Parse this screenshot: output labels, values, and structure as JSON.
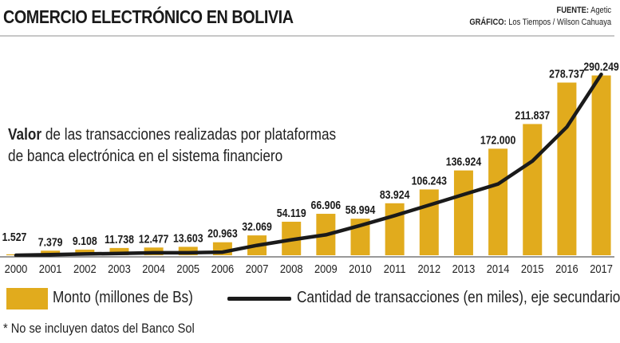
{
  "title": "COMERCIO ELECTRÓNICO EN BOLIVIA",
  "source": {
    "label1": "FUENTE:",
    "value1": "Agetic",
    "label2": "GRÁFICO:",
    "value2": "Los Tiempos / Wilson Cahuaya"
  },
  "description": {
    "bold": "Valor",
    "line1": " de las transacciones realizadas por plataformas",
    "line2": "de banca electrónica en el sistema financiero"
  },
  "legend": {
    "bars": "Monto (millones de Bs)",
    "line": "Cantidad de transacciones (en miles), eje secundario"
  },
  "footnote": "* No se incluyen datos del Banco Sol",
  "colors": {
    "bar": "#e1ab1d",
    "line": "#1a1a1a"
  },
  "chart_data": {
    "type": "bar",
    "categories": [
      "2000",
      "2001",
      "2002",
      "2003",
      "2004",
      "2005",
      "2006",
      "2007",
      "2008",
      "2009",
      "2010",
      "2011",
      "2012",
      "2013",
      "2014",
      "2015",
      "2016",
      "2017"
    ],
    "series": [
      {
        "name": "Monto (millones de Bs)",
        "type": "bar",
        "values": [
          1527,
          7379,
          9108,
          11738,
          12477,
          13603,
          20963,
          32069,
          54119,
          66906,
          58994,
          83924,
          106243,
          136924,
          172000,
          211837,
          278737,
          290249
        ],
        "labels": [
          "1.527",
          "7.379",
          "9.108",
          "11.738",
          "12.477",
          "13.603",
          "20.963",
          "32.069",
          "54.119",
          "66.906",
          "58.994",
          "83.924",
          "106.243",
          "136.924",
          "172.000",
          "211.837",
          "278.737",
          "290.249"
        ]
      },
      {
        "name": "Cantidad de transacciones (en miles), eje secundario",
        "type": "line",
        "axis": "secondary",
        "values": [
          0,
          1,
          2,
          3,
          4,
          4,
          5,
          16,
          25,
          33,
          48,
          64,
          81,
          98,
          115,
          152,
          207,
          292
        ]
      }
    ],
    "ylim": [
      0,
      300000
    ],
    "y2lim": [
      0,
      300
    ],
    "grid": false,
    "legend_position": "bottom"
  }
}
